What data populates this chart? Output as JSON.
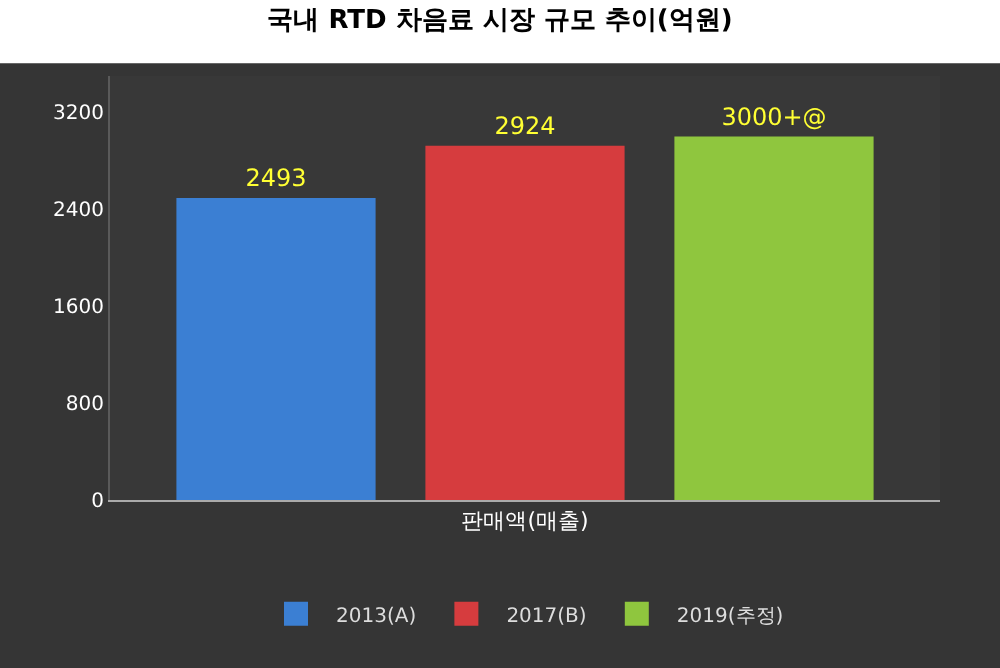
{
  "chart_data": {
    "type": "bar",
    "title": "국내 RTD 차음료 시장 규모 추이(억원)",
    "categories": [
      "판매액(매출)"
    ],
    "series": [
      {
        "name": "2013(A)",
        "color": "#3b7fd3",
        "values": [
          2493
        ],
        "value_labels": [
          "2493"
        ]
      },
      {
        "name": "2017(B)",
        "color": "#d63c3e",
        "values": [
          2924
        ],
        "value_labels": [
          "2924"
        ]
      },
      {
        "name": "2019(추정)",
        "color": "#8fc63e",
        "values": [
          3000
        ],
        "value_labels": [
          "3000+@"
        ]
      }
    ],
    "ylim": [
      0,
      3500
    ],
    "yticks": [
      0,
      800,
      1600,
      2400,
      3200
    ],
    "grid": false,
    "legend": "bottom"
  }
}
